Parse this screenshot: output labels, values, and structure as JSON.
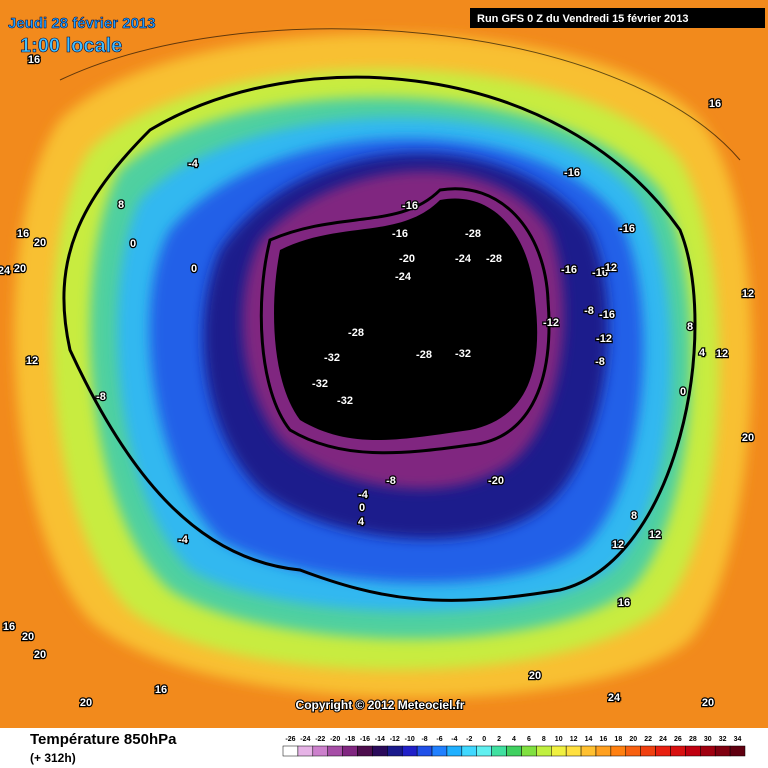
{
  "header": {
    "date": "Jeudi 28 février 2013",
    "time": "1:00 locale",
    "run": "Run GFS 0 Z du Vendredi 15 février 2013"
  },
  "copyright": "Copyright © 2012 Meteociel.fr",
  "contour_labels": [
    -16,
    -16,
    -16,
    -28,
    -20,
    -24,
    -28,
    -24,
    -16,
    -16,
    -12,
    -16,
    -12,
    -8,
    -16,
    -12,
    -8,
    -28,
    -32,
    -28,
    -32,
    -32,
    -32,
    -20,
    -8,
    -4,
    0,
    4,
    -4,
    -8,
    0,
    0,
    8,
    -4,
    16,
    16,
    16,
    20,
    24,
    20,
    12,
    8,
    4,
    12,
    0,
    20,
    8,
    12,
    12,
    16,
    16,
    20,
    20,
    20,
    16,
    20,
    24,
    20,
    12
  ],
  "legend": {
    "title": "Température 850hPa",
    "subtitle": "(+ 312h)",
    "ticks": [
      -26,
      -24,
      -22,
      -20,
      -18,
      -16,
      -14,
      -12,
      -10,
      -8,
      -6,
      -4,
      -2,
      0,
      2,
      4,
      6,
      8,
      10,
      12,
      14,
      16,
      18,
      20,
      22,
      24,
      26,
      28,
      30,
      32,
      34
    ],
    "colors": [
      "#ffffff",
      "#e6b3e6",
      "#cc80cc",
      "#a64da6",
      "#802680",
      "#4d0d4d",
      "#2a0a5a",
      "#1a1a8c",
      "#2020c8",
      "#2050e8",
      "#2080ff",
      "#20b0ff",
      "#40d8ff",
      "#60f0f0",
      "#40e0a0",
      "#40d060",
      "#80e040",
      "#c0f040",
      "#f0f040",
      "#ffe040",
      "#ffc030",
      "#ffa020",
      "#ff8010",
      "#f86010",
      "#f04010",
      "#e82010",
      "#d81010",
      "#c00010",
      "#a00010",
      "#800010",
      "#600010"
    ]
  }
}
